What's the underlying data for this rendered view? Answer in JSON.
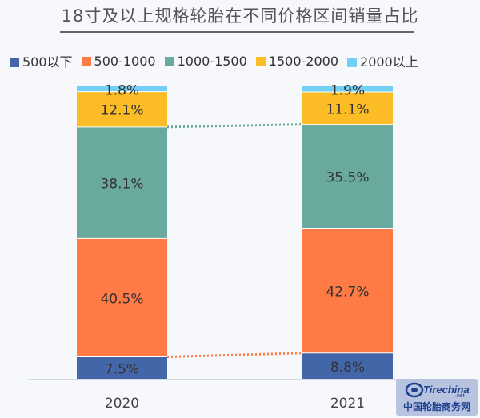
{
  "chart_data": {
    "type": "bar",
    "stacked": true,
    "title": "18寸及以上规格轮胎在不同价格区间销量占比",
    "categories": [
      "2020",
      "2021"
    ],
    "ylim": [
      0,
      100
    ],
    "legend_position": "top",
    "series": [
      {
        "name": "500以下",
        "color": "#4366a8",
        "values": [
          7.5,
          8.8
        ]
      },
      {
        "name": "500-1000",
        "color": "#ff7a45",
        "values": [
          40.5,
          42.7
        ]
      },
      {
        "name": "1000-1500",
        "color": "#6aa99d",
        "values": [
          38.1,
          35.5
        ]
      },
      {
        "name": "1500-2000",
        "color": "#fbbc25",
        "values": [
          12.1,
          11.1
        ]
      },
      {
        "name": "2000以上",
        "color": "#73d0f5",
        "values": [
          1.8,
          1.9
        ]
      }
    ],
    "data_labels": [
      [
        "7.5%",
        "40.5%",
        "38.1%",
        "12.1%",
        "1.8%"
      ],
      [
        "8.8%",
        "42.7%",
        "35.5%",
        "11.1%",
        "1.9%"
      ]
    ],
    "connector_lines": [
      {
        "between": "500以下",
        "color": "#ff7a45"
      },
      {
        "between": "1000-1500",
        "color": "#6aa99d"
      }
    ]
  },
  "watermark": {
    "logo_text": "Tirechina.net",
    "caption": "中国轮胎商务网"
  }
}
